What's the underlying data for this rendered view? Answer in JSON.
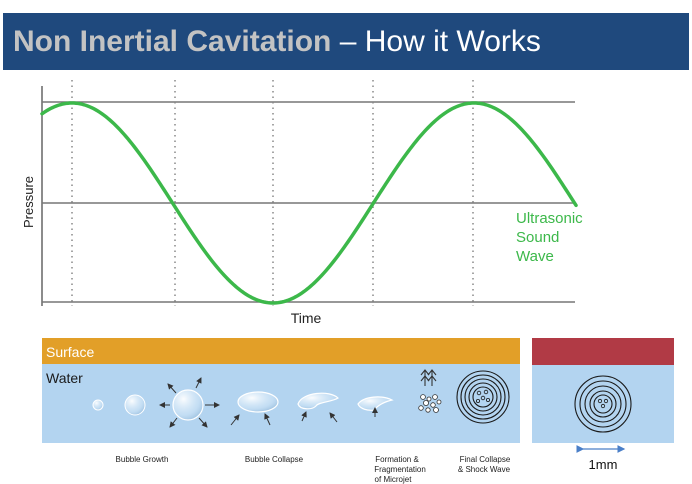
{
  "slide": {
    "title_main": "Non Inertial Cavitation",
    "title_rest": " – How it Works"
  },
  "graph": {
    "y_label": "Pressure",
    "x_label": "Time",
    "wave_label_1": "Ultrasonic",
    "wave_label_2": "Sound",
    "wave_label_3": "Wave",
    "wave_color": "#3cb84a"
  },
  "panel": {
    "surface_label": "Surface",
    "water_label": "Water",
    "surface_color": "#e29f28",
    "water_color": "#b3d4f0",
    "side_surface_color": "#b13a45"
  },
  "stages": [
    {
      "label_1": "Bubble Growth",
      "label_2": "",
      "label_3": ""
    },
    {
      "label_1": "Bubble Collapse",
      "label_2": "",
      "label_3": ""
    },
    {
      "label_1": "Formation &",
      "label_2": "Fragmentation",
      "label_3": "of Microjet"
    },
    {
      "label_1": "Final Collapse",
      "label_2": "& Shock Wave",
      "label_3": ""
    }
  ],
  "scale": {
    "label": "1mm"
  }
}
